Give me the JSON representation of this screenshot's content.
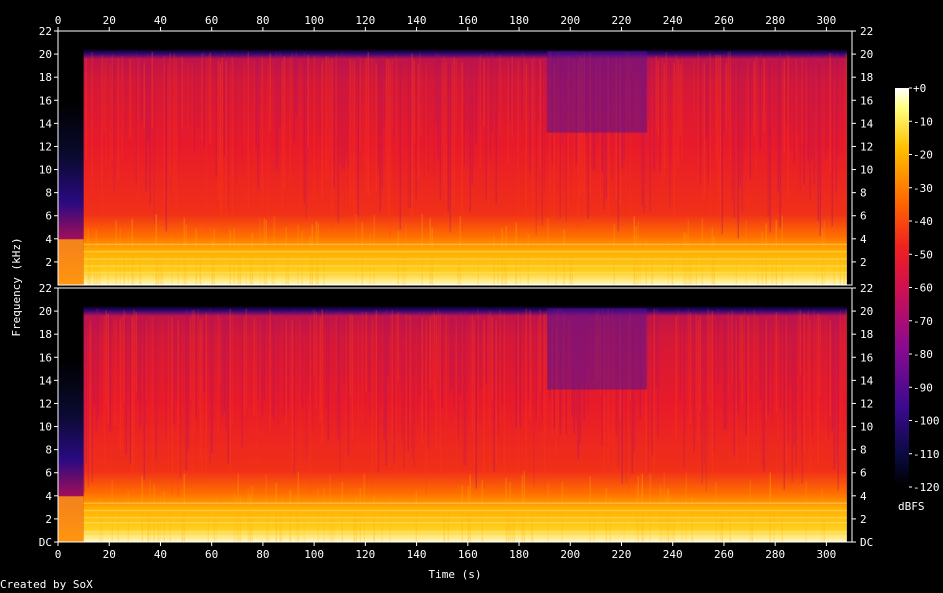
{
  "chart_data": {
    "type": "heatmap",
    "title": "",
    "xlabel": "Time (s)",
    "ylabel": "Frequency (kHz)",
    "xlim": [
      0,
      310
    ],
    "ylim": [
      0,
      22
    ],
    "x_ticks": [
      "0",
      "20",
      "40",
      "60",
      "80",
      "100",
      "120",
      "140",
      "160",
      "180",
      "200",
      "220",
      "240",
      "260",
      "280",
      "300"
    ],
    "y_ticks": [
      "DC",
      "2",
      "4",
      "6",
      "8",
      "10",
      "12",
      "14",
      "16",
      "18",
      "20",
      "22"
    ],
    "y_ticks_top_panel": [
      "2",
      "4",
      "6",
      "8",
      "10",
      "12",
      "14",
      "16",
      "18",
      "20",
      "22"
    ],
    "channels": 2,
    "colorbar": {
      "label": "dBFS",
      "ticks": [
        "+0",
        "-10",
        "-20",
        "-30",
        "-40",
        "-50",
        "-60",
        "-70",
        "-80",
        "-90",
        "-100",
        "-110",
        "-120"
      ],
      "range": [
        -120,
        0
      ]
    },
    "audio_start_s": 10,
    "audio_end_s": 308,
    "bandwidth_khz": 20
  },
  "credit": "Created by SoX"
}
